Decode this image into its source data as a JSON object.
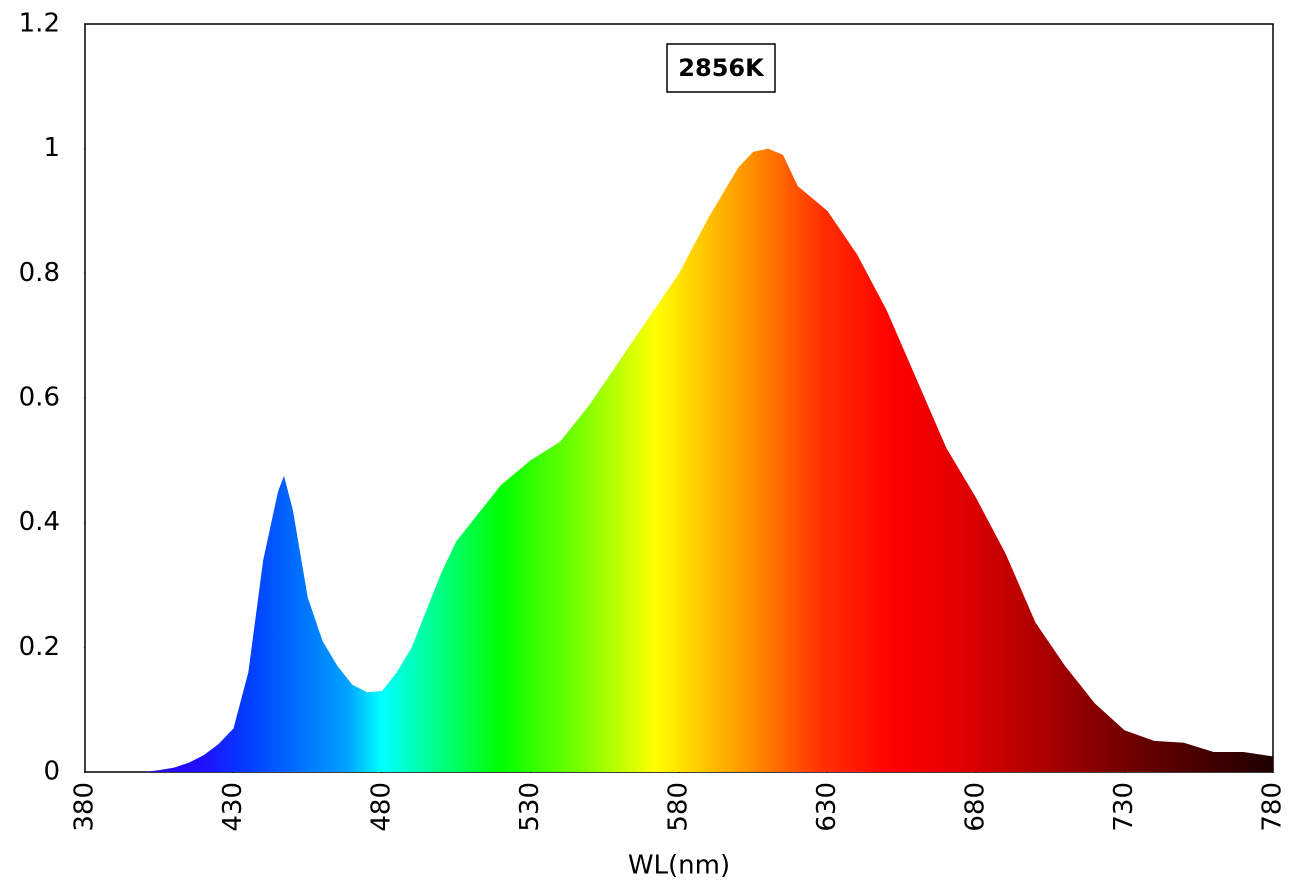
{
  "chart_data": {
    "type": "area",
    "annotation": "2856K",
    "x_label": "WL(nm)",
    "x": [
      380,
      390,
      400,
      405,
      410,
      415,
      420,
      425,
      430,
      435,
      440,
      445,
      447,
      450,
      455,
      460,
      465,
      470,
      475,
      480,
      485,
      490,
      495,
      500,
      505,
      510,
      515,
      520,
      525,
      530,
      540,
      550,
      560,
      570,
      580,
      590,
      600,
      605,
      610,
      615,
      620,
      630,
      640,
      650,
      660,
      670,
      680,
      690,
      700,
      710,
      720,
      730,
      740,
      750,
      760,
      770,
      780
    ],
    "values": [
      0,
      0,
      0,
      0.003,
      0.007,
      0.015,
      0.027,
      0.045,
      0.07,
      0.16,
      0.34,
      0.45,
      0.475,
      0.42,
      0.28,
      0.21,
      0.17,
      0.14,
      0.128,
      0.13,
      0.16,
      0.2,
      0.26,
      0.32,
      0.37,
      0.4,
      0.43,
      0.46,
      0.48,
      0.5,
      0.53,
      0.59,
      0.66,
      0.73,
      0.8,
      0.89,
      0.97,
      0.995,
      1.0,
      0.99,
      0.94,
      0.9,
      0.83,
      0.74,
      0.63,
      0.52,
      0.44,
      0.35,
      0.24,
      0.17,
      0.11,
      0.067,
      0.05,
      0.047,
      0.032,
      0.032,
      0.025
    ],
    "xlim": [
      380,
      780
    ],
    "ylim": [
      0,
      1.2
    ],
    "xticks": [
      380,
      430,
      480,
      530,
      580,
      630,
      680,
      730,
      780
    ],
    "yticks": [
      0,
      0.2,
      0.4,
      0.6,
      0.8,
      1,
      1.2
    ]
  }
}
